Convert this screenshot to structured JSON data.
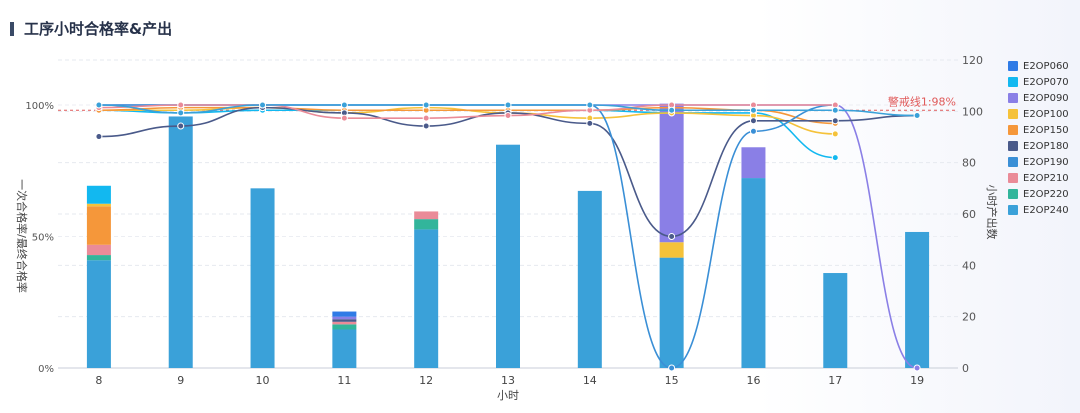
{
  "page": {
    "title": "工序小时合格率&产出"
  },
  "chart_data": {
    "type": "bar+line",
    "categories": [
      "8",
      "9",
      "10",
      "11",
      "12",
      "13",
      "14",
      "15",
      "16",
      "17",
      "19"
    ],
    "xlabel": "小时",
    "ylabel_left": "一次合格率/最终合格率",
    "ylabel_right": "小时产出数",
    "left_ticks": [
      "0%",
      "50%",
      "100%"
    ],
    "right_ticks": [
      "0",
      "20",
      "40",
      "60",
      "80",
      "100",
      "120"
    ],
    "ylim_left": [
      0,
      1
    ],
    "ylim_right": [
      0,
      120
    ],
    "grid": true,
    "legend_position": "right",
    "warning_line": {
      "label": "警戒线1:98%",
      "value": 0.98,
      "color": "#e05a5a"
    },
    "bar_series": [
      {
        "name": "E2OP060",
        "color": "#2f7be6",
        "values": [
          0,
          0,
          0,
          2,
          0,
          0,
          0,
          0,
          0,
          0,
          0
        ]
      },
      {
        "name": "E2OP070",
        "color": "#12b8f0",
        "values": [
          7,
          0,
          0,
          0,
          0,
          0,
          0,
          0,
          0,
          0,
          0
        ]
      },
      {
        "name": "E2OP090",
        "color": "#8a7fe6",
        "values": [
          0,
          0,
          0,
          1,
          0,
          0,
          0,
          54,
          12,
          0,
          0
        ]
      },
      {
        "name": "E2OP100",
        "color": "#f5c23a",
        "values": [
          1,
          0,
          0,
          0,
          0,
          0,
          0,
          6,
          0,
          0,
          0
        ]
      },
      {
        "name": "E2OP150",
        "color": "#f5973a",
        "values": [
          15,
          0,
          0,
          0,
          0,
          0,
          0,
          0,
          0,
          0,
          0
        ]
      },
      {
        "name": "E2OP180",
        "color": "#4a5a8a",
        "values": [
          0,
          0,
          0,
          1,
          0,
          0,
          0,
          0,
          0,
          0,
          0
        ]
      },
      {
        "name": "E2OP190",
        "color": "#3a8fd6",
        "values": [
          0,
          0,
          0,
          0,
          0,
          0,
          0,
          0,
          0,
          0,
          0
        ]
      },
      {
        "name": "E2OP210",
        "color": "#ea8b98",
        "values": [
          4,
          0,
          0,
          1,
          3,
          0,
          0,
          0,
          0,
          0,
          0
        ]
      },
      {
        "name": "E2OP220",
        "color": "#32b59b",
        "values": [
          2,
          0,
          0,
          2,
          4,
          0,
          0,
          0,
          0,
          0,
          0
        ]
      },
      {
        "name": "E2OP240",
        "color": "#3aa1d9",
        "values": [
          42,
          98,
          70,
          15,
          54,
          87,
          69,
          43,
          74,
          37,
          53
        ]
      }
    ],
    "line_series": [
      {
        "name": "E2OP070",
        "color": "#12b8f0",
        "values": [
          0.98,
          0.97,
          0.98,
          0.98,
          0.98,
          0.98,
          0.98,
          0.97,
          0.97,
          0.8,
          null
        ]
      },
      {
        "name": "E2OP090",
        "color": "#8a7fe6",
        "values": [
          1.0,
          1.0,
          1.0,
          1.0,
          1.0,
          1.0,
          1.0,
          1.0,
          1.0,
          1.0,
          0.0
        ]
      },
      {
        "name": "E2OP100",
        "color": "#f5c23a",
        "values": [
          0.98,
          0.98,
          0.99,
          0.97,
          0.99,
          0.97,
          0.95,
          0.97,
          0.96,
          0.89,
          null
        ]
      },
      {
        "name": "E2OP150",
        "color": "#f5973a",
        "values": [
          0.98,
          0.99,
          0.99,
          0.98,
          0.98,
          0.98,
          0.98,
          0.99,
          0.98,
          0.93,
          null
        ]
      },
      {
        "name": "E2OP180",
        "color": "#4a5a8a",
        "values": [
          0.88,
          0.92,
          0.99,
          0.97,
          0.92,
          0.97,
          0.93,
          0.5,
          0.94,
          0.94,
          0.96
        ]
      },
      {
        "name": "E2OP190",
        "color": "#3a8fd6",
        "values": [
          1.0,
          1.0,
          1.0,
          1.0,
          1.0,
          1.0,
          1.0,
          0.0,
          0.9,
          1.0,
          null
        ]
      },
      {
        "name": "E2OP210",
        "color": "#ea8b98",
        "values": [
          0.99,
          1.0,
          1.0,
          0.95,
          0.95,
          0.96,
          0.98,
          1.0,
          1.0,
          1.0,
          null
        ]
      },
      {
        "name": "E2OP240",
        "color": "#3aa1d9",
        "values": [
          1.0,
          0.97,
          1.0,
          1.0,
          1.0,
          1.0,
          1.0,
          0.98,
          0.98,
          0.98,
          0.96
        ]
      }
    ],
    "legend": [
      "E2OP060",
      "E2OP070",
      "E2OP090",
      "E2OP100",
      "E2OP150",
      "E2OP180",
      "E2OP190",
      "E2OP210",
      "E2OP220",
      "E2OP240"
    ]
  }
}
